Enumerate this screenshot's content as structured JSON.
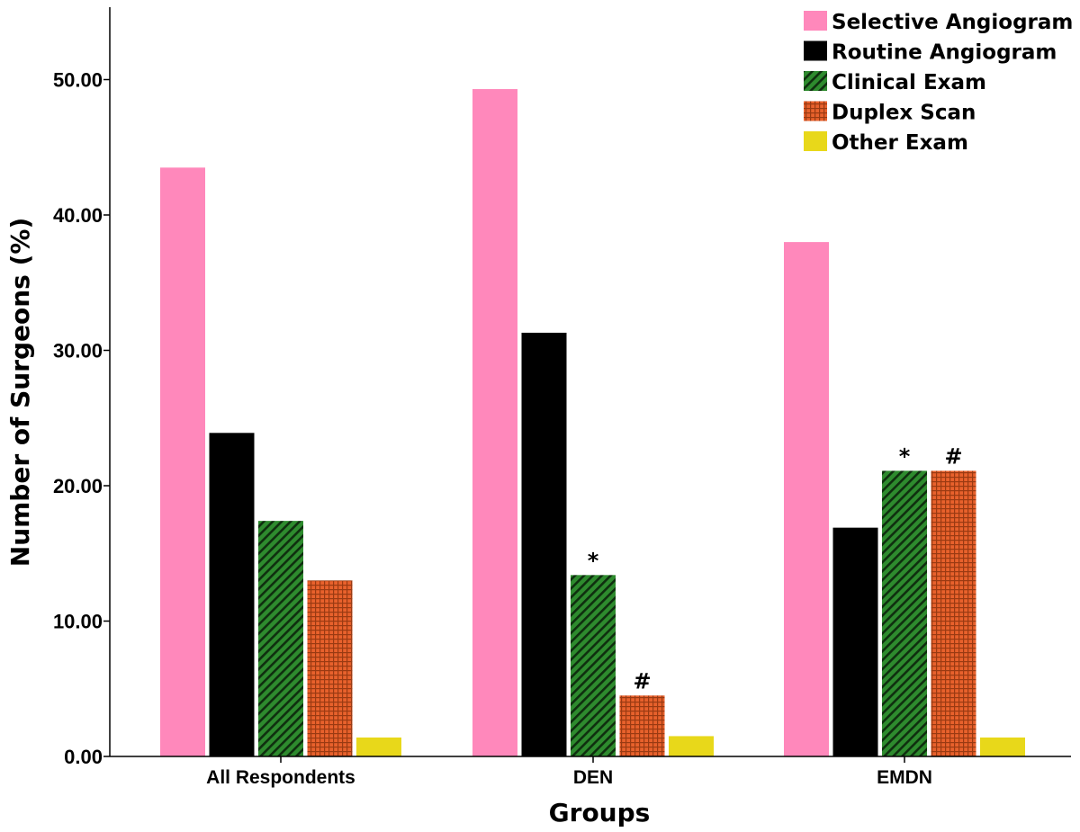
{
  "chart_data": {
    "type": "bar",
    "title": "",
    "xlabel": "Groups",
    "ylabel": "Number of Surgeons (%)",
    "ylim": [
      0,
      55
    ],
    "yticks": [
      "0.00",
      "10.00",
      "20.00",
      "30.00",
      "40.00",
      "50.00"
    ],
    "ytick_values": [
      0,
      10,
      20,
      30,
      40,
      50
    ],
    "categories": [
      "All Respondents",
      "DEN",
      "EMDN"
    ],
    "legend_position": "top-right",
    "grid": false,
    "series": [
      {
        "name": "Selective Angiogram",
        "color": "#ff88bb",
        "pattern": "none",
        "values": [
          43.5,
          49.3,
          38.0
        ]
      },
      {
        "name": "Routine Angiogram",
        "color": "#000000",
        "pattern": "none",
        "values": [
          23.9,
          31.3,
          16.9
        ]
      },
      {
        "name": "Clinical Exam",
        "color": "#2e8b2e",
        "pattern": "diagonal-hatch",
        "values": [
          17.4,
          13.4,
          21.1
        ]
      },
      {
        "name": "Duplex Scan",
        "color": "#e8612c",
        "pattern": "crosshatch",
        "values": [
          13.0,
          4.5,
          21.1
        ]
      },
      {
        "name": "Other Exam",
        "color": "#e8d81a",
        "pattern": "none",
        "values": [
          1.4,
          1.5,
          1.4
        ]
      }
    ],
    "annotations": [
      {
        "text": "*",
        "category": "DEN",
        "series": "Clinical Exam"
      },
      {
        "text": "#",
        "category": "DEN",
        "series": "Duplex Scan"
      },
      {
        "text": "*",
        "category": "EMDN",
        "series": "Clinical Exam"
      },
      {
        "text": "#",
        "category": "EMDN",
        "series": "Duplex Scan"
      }
    ]
  }
}
